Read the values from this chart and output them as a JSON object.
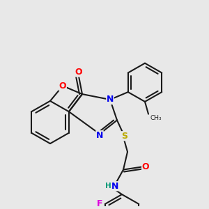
{
  "bg_color": "#e8e8e8",
  "bond_color": "#1a1a1a",
  "bond_width": 1.5,
  "atom_colors": {
    "O": "#ff0000",
    "N": "#0000ee",
    "S": "#bbaa00",
    "F": "#dd00dd",
    "H": "#009977",
    "C": "#1a1a1a"
  },
  "font_size_atom": 9,
  "font_size_small": 7.5
}
